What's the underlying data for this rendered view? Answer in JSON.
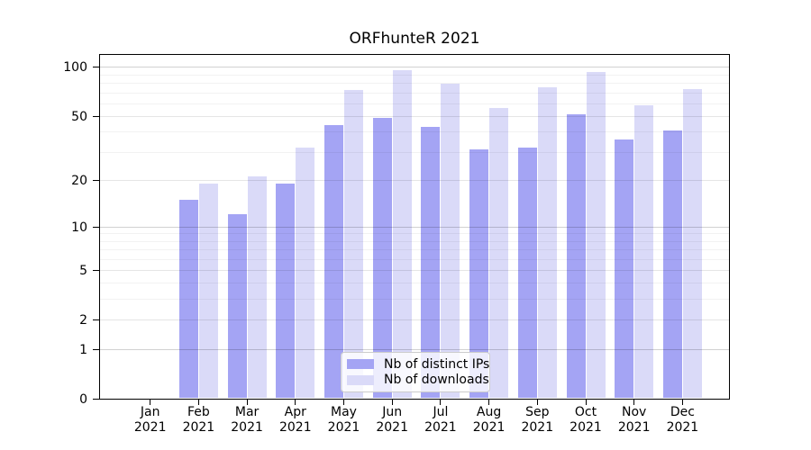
{
  "title": "ORFhunteR 2021",
  "colors": {
    "distinct_ips": "#a4a4f4",
    "downloads": "#dadaf8",
    "axis": "#000000",
    "grid_major": "rgba(0,0,0,0.18)",
    "grid_mid": "rgba(0,0,0,0.10)",
    "grid_minor": "rgba(0,0,0,0.05)",
    "legend_border": "#cccccc",
    "background": "#ffffff"
  },
  "chart_data": {
    "type": "bar",
    "title": "ORFhunteR 2021",
    "xlabel": "",
    "ylabel": "",
    "yscale": "log1p",
    "ylim": [
      0,
      120
    ],
    "yticks": [
      0,
      1,
      2,
      5,
      10,
      20,
      50,
      100
    ],
    "grid": true,
    "minor_grid_values": [
      3,
      4,
      6,
      7,
      8,
      9,
      30,
      40,
      60,
      70,
      80,
      90
    ],
    "major_grid_values": [
      1,
      10,
      100
    ],
    "categories": [
      {
        "month": "Jan",
        "year": "2021"
      },
      {
        "month": "Feb",
        "year": "2021"
      },
      {
        "month": "Mar",
        "year": "2021"
      },
      {
        "month": "Apr",
        "year": "2021"
      },
      {
        "month": "May",
        "year": "2021"
      },
      {
        "month": "Jun",
        "year": "2021"
      },
      {
        "month": "Jul",
        "year": "2021"
      },
      {
        "month": "Aug",
        "year": "2021"
      },
      {
        "month": "Sep",
        "year": "2021"
      },
      {
        "month": "Oct",
        "year": "2021"
      },
      {
        "month": "Nov",
        "year": "2021"
      },
      {
        "month": "Dec",
        "year": "2021"
      }
    ],
    "series": [
      {
        "name": "Nb of distinct IPs",
        "color_key": "distinct_ips",
        "values": [
          0,
          15,
          12,
          19,
          44,
          49,
          43,
          31,
          32,
          51,
          36,
          41
        ]
      },
      {
        "name": "Nb of downloads",
        "color_key": "downloads",
        "values": [
          0,
          19,
          21,
          32,
          72,
          96,
          79,
          56,
          75,
          93,
          58,
          73
        ]
      }
    ],
    "legend_position": "lower-center"
  }
}
